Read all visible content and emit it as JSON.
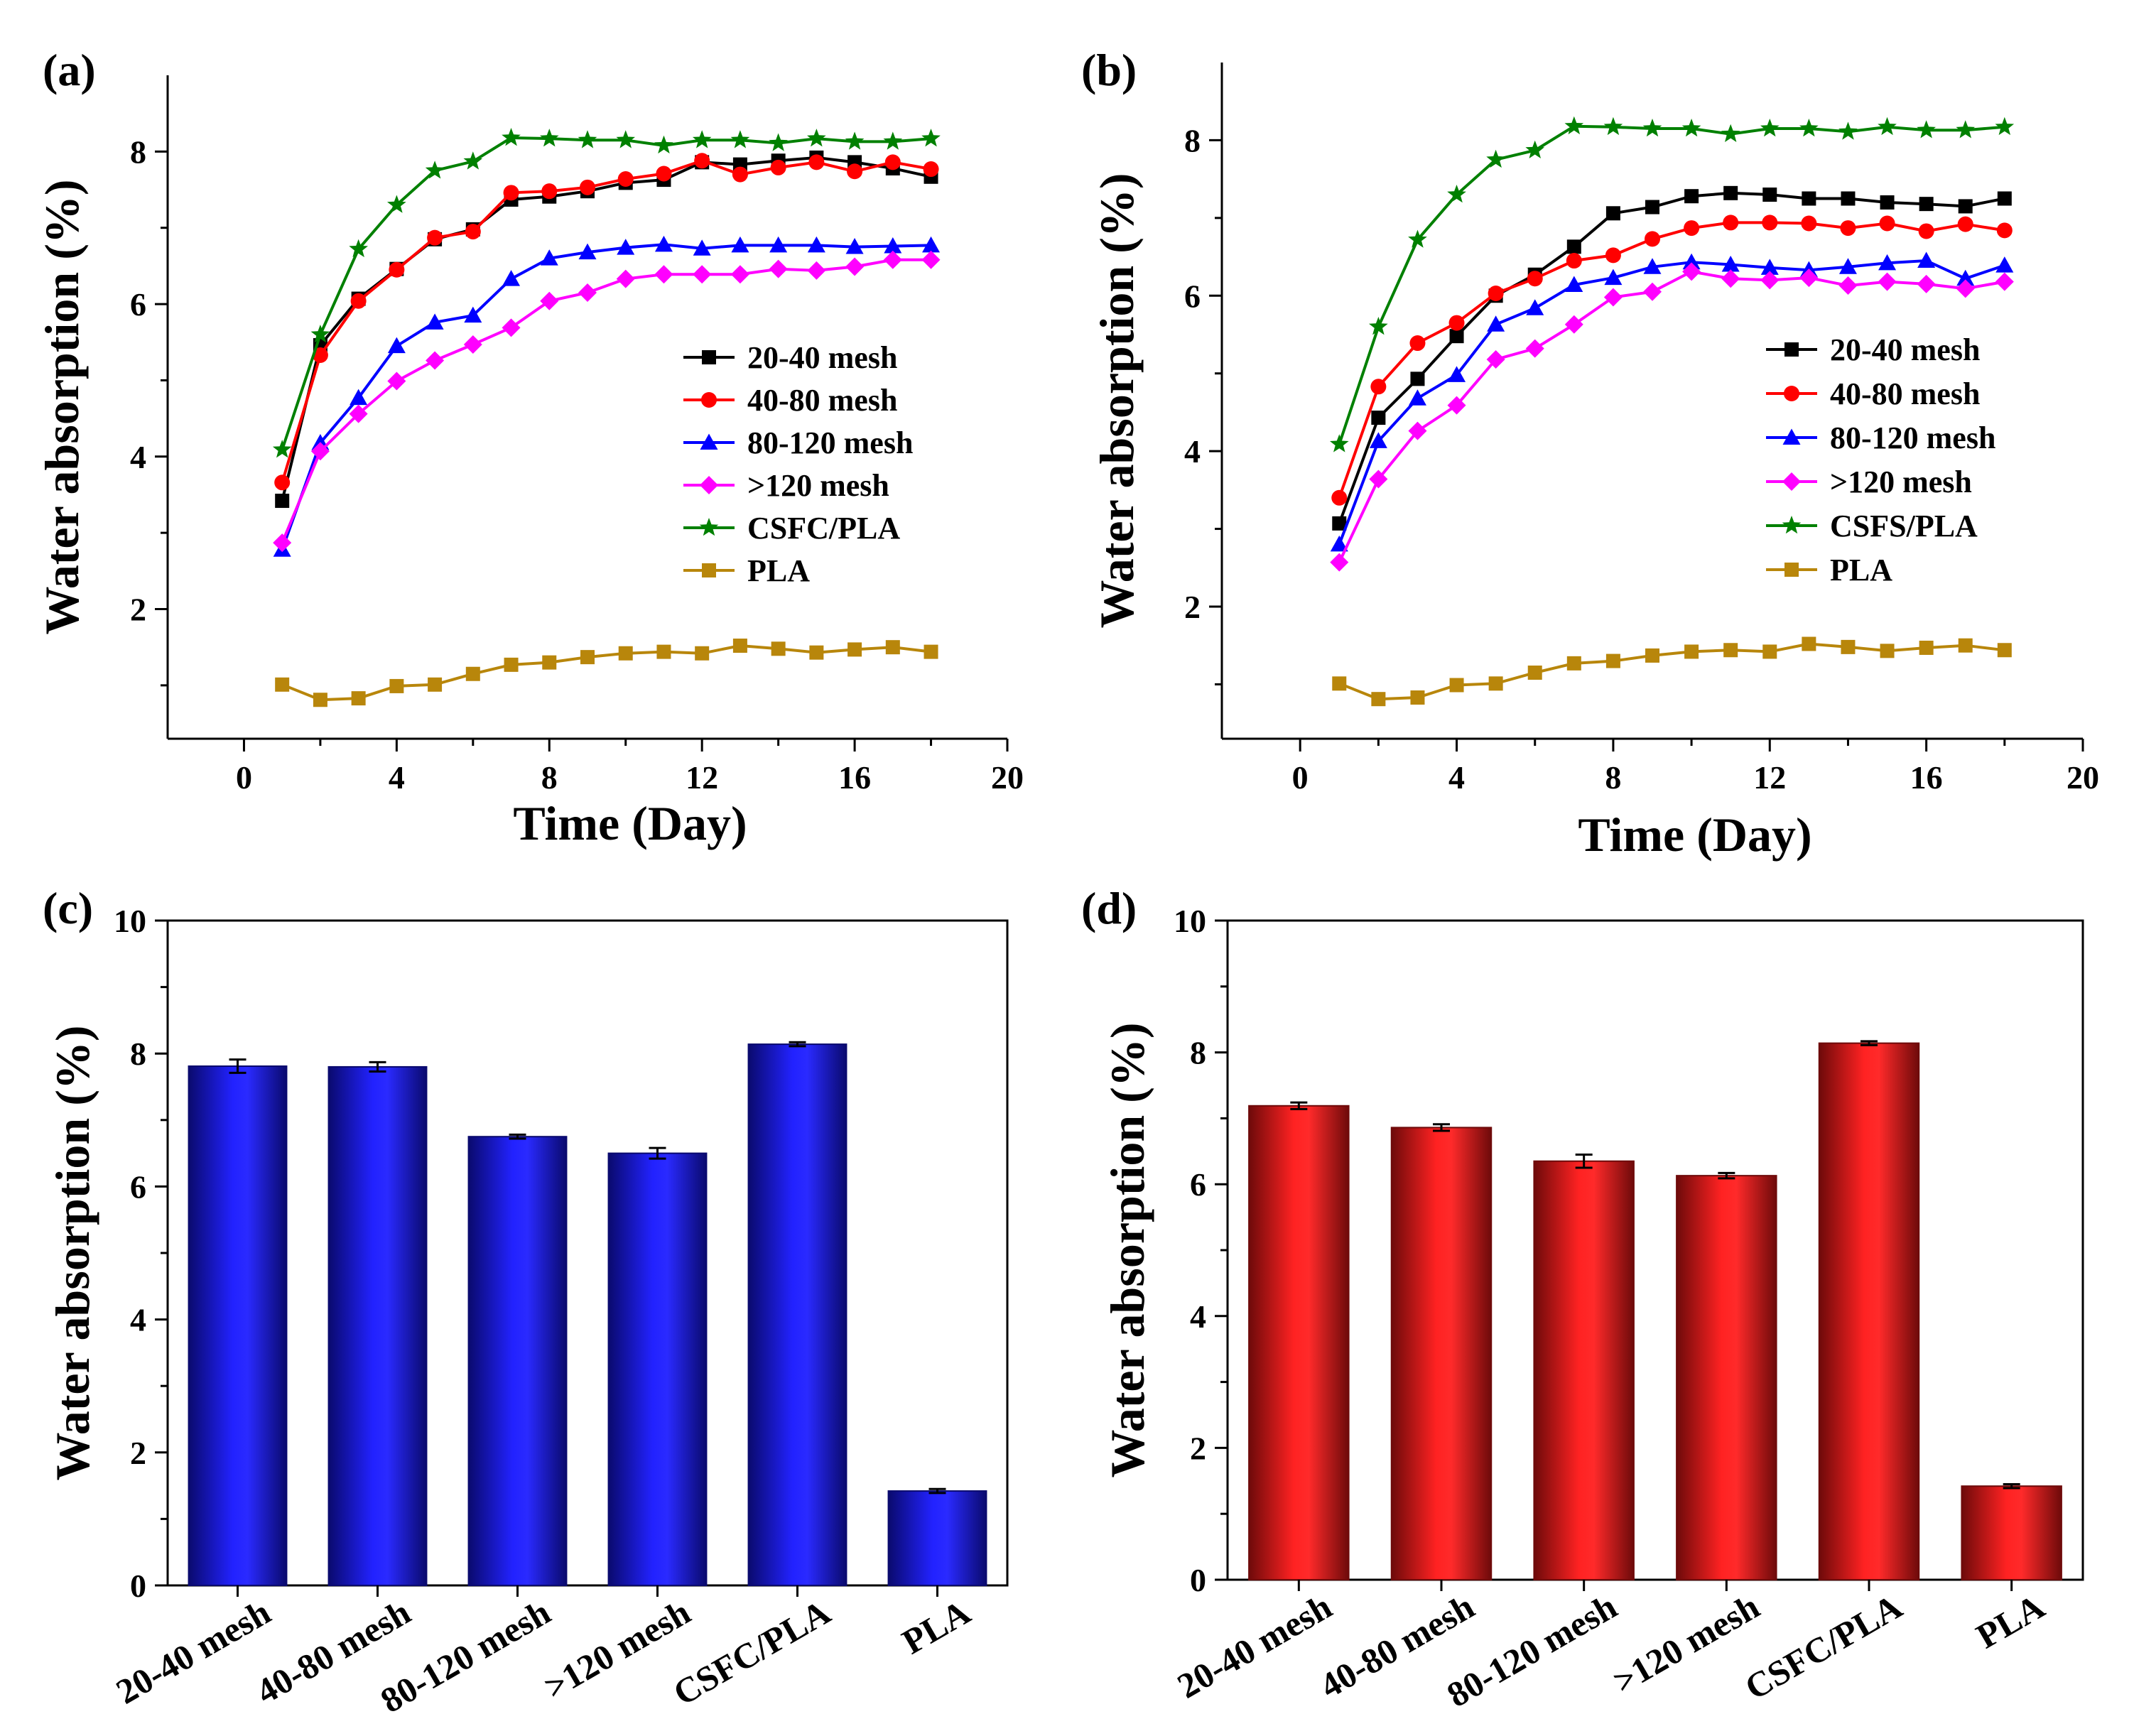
{
  "colors": {
    "black": "#000000",
    "red": "#ff0000",
    "blue": "#0000ff",
    "magenta": "#ff00ff",
    "green": "#008000",
    "gold": "#b8860b",
    "bar_blue": "#1a1aff",
    "bar_blue_edge": "#0a0a6e",
    "bar_red": "#ff2020",
    "bar_red_edge": "#6e0a0a"
  },
  "chart_data": [
    {
      "id": "a",
      "type": "line",
      "panel_label": "(a)",
      "xlabel": "Time (Day)",
      "ylabel": "Water absorption (%)",
      "xlim": [
        -2,
        20
      ],
      "ylim": [
        0.3,
        9.0
      ],
      "xticks": [
        0,
        4,
        8,
        12,
        16,
        20
      ],
      "xticklabels": [
        "0",
        "4",
        "8",
        "12",
        "16",
        "20"
      ],
      "yticks": [
        2,
        4,
        6,
        8
      ],
      "yticklabels": [
        "2",
        "4",
        "6",
        "8"
      ],
      "x": [
        1,
        2,
        3,
        4,
        5,
        6,
        7,
        8,
        9,
        10,
        11,
        12,
        13,
        14,
        15,
        16,
        17,
        18
      ],
      "series": [
        {
          "name": "20-40  mesh",
          "color": "black",
          "marker": "square",
          "values": [
            3.42,
            5.46,
            6.07,
            6.46,
            6.85,
            6.98,
            7.37,
            7.41,
            7.48,
            7.59,
            7.63,
            7.86,
            7.83,
            7.88,
            7.92,
            7.86,
            7.78,
            7.67
          ]
        },
        {
          "name": "40-80 mesh",
          "color": "red",
          "marker": "circle",
          "values": [
            3.66,
            5.33,
            6.04,
            6.45,
            6.87,
            6.95,
            7.46,
            7.48,
            7.53,
            7.64,
            7.71,
            7.88,
            7.7,
            7.79,
            7.86,
            7.74,
            7.86,
            7.77
          ]
        },
        {
          "name": " 80-120 mesh",
          "color": "blue",
          "marker": "triangle",
          "values": [
            2.78,
            4.18,
            4.77,
            5.45,
            5.76,
            5.85,
            6.33,
            6.6,
            6.68,
            6.74,
            6.78,
            6.73,
            6.77,
            6.77,
            6.77,
            6.75,
            6.76,
            6.77
          ]
        },
        {
          "name": ">120 mesh",
          "color": "magenta",
          "marker": "diamond",
          "values": [
            2.87,
            4.07,
            4.56,
            4.99,
            5.26,
            5.47,
            5.69,
            6.04,
            6.15,
            6.33,
            6.39,
            6.39,
            6.39,
            6.46,
            6.44,
            6.49,
            6.58,
            6.58
          ]
        },
        {
          "name": "CSFC/PLA",
          "color": "green",
          "marker": "star",
          "values": [
            4.09,
            5.6,
            6.72,
            7.3,
            7.75,
            7.87,
            8.18,
            8.17,
            8.15,
            8.15,
            8.08,
            8.15,
            8.15,
            8.11,
            8.17,
            8.13,
            8.13,
            8.17
          ]
        },
        {
          "name": "PLA",
          "color": "gold",
          "marker": "square",
          "values": [
            1.01,
            0.81,
            0.83,
            0.99,
            1.01,
            1.15,
            1.27,
            1.3,
            1.37,
            1.42,
            1.44,
            1.42,
            1.52,
            1.48,
            1.43,
            1.47,
            1.5,
            1.44
          ]
        }
      ],
      "legend_position": "right-middle"
    },
    {
      "id": "b",
      "type": "line",
      "panel_label": "(b)",
      "xlabel": "Time (Day)",
      "ylabel": "Water absorption (%)",
      "xlim": [
        -2,
        20
      ],
      "ylim": [
        0.3,
        9.0
      ],
      "xticks": [
        0,
        4,
        8,
        12,
        16,
        20
      ],
      "xticklabels": [
        "0",
        "4",
        "8",
        "12",
        "16",
        "20"
      ],
      "yticks": [
        2,
        4,
        6,
        8
      ],
      "yticklabels": [
        "2",
        "4",
        "6",
        "8"
      ],
      "x": [
        1,
        2,
        3,
        4,
        5,
        6,
        7,
        8,
        9,
        10,
        11,
        12,
        13,
        14,
        15,
        16,
        17,
        18
      ],
      "series": [
        {
          "name": "20-40 mesh",
          "color": "black",
          "marker": "square",
          "values": [
            3.07,
            4.43,
            4.93,
            5.48,
            6.0,
            6.27,
            6.63,
            7.06,
            7.14,
            7.28,
            7.32,
            7.3,
            7.25,
            7.25,
            7.2,
            7.18,
            7.15,
            7.25
          ]
        },
        {
          "name": "40-80 mesh",
          "color": "red",
          "marker": "circle",
          "values": [
            3.4,
            4.83,
            5.39,
            5.65,
            6.03,
            6.22,
            6.45,
            6.52,
            6.73,
            6.87,
            6.94,
            6.94,
            6.93,
            6.87,
            6.93,
            6.83,
            6.92,
            6.84
          ]
        },
        {
          "name": " 80-120 mesh",
          "color": "blue",
          "marker": "triangle",
          "values": [
            2.8,
            4.13,
            4.68,
            4.98,
            5.63,
            5.84,
            6.14,
            6.23,
            6.37,
            6.43,
            6.4,
            6.36,
            6.33,
            6.37,
            6.42,
            6.45,
            6.22,
            6.39
          ]
        },
        {
          "name": ">120 mesh",
          "color": "magenta",
          "marker": "diamond",
          "values": [
            2.57,
            3.64,
            4.26,
            4.59,
            5.18,
            5.32,
            5.63,
            5.98,
            6.05,
            6.31,
            6.22,
            6.2,
            6.23,
            6.13,
            6.18,
            6.15,
            6.09,
            6.18
          ]
        },
        {
          "name": "CSFS/PLA",
          "color": "green",
          "marker": "star",
          "values": [
            4.09,
            5.6,
            6.72,
            7.3,
            7.75,
            7.87,
            8.18,
            8.17,
            8.15,
            8.15,
            8.08,
            8.15,
            8.15,
            8.11,
            8.17,
            8.13,
            8.13,
            8.17
          ]
        },
        {
          "name": "PLA",
          "color": "gold",
          "marker": "square",
          "values": [
            1.01,
            0.81,
            0.83,
            0.99,
            1.01,
            1.15,
            1.27,
            1.3,
            1.37,
            1.42,
            1.44,
            1.42,
            1.52,
            1.48,
            1.43,
            1.47,
            1.5,
            1.44
          ]
        }
      ],
      "legend_position": "right-middle"
    },
    {
      "id": "c",
      "type": "bar",
      "panel_label": "(c)",
      "xlabel": "",
      "ylabel": "Water absorption (%)",
      "ylim": [
        0,
        10
      ],
      "yticks": [
        0,
        2,
        4,
        6,
        8,
        10
      ],
      "yticklabels": [
        "0",
        "2",
        "4",
        "6",
        "8",
        "10"
      ],
      "categories": [
        "20-40 mesh",
        "40-80 mesh",
        "80-120 mesh",
        ">120 mesh",
        "CSFC/PLA",
        "PLA"
      ],
      "values": [
        7.81,
        7.8,
        6.75,
        6.5,
        8.14,
        1.42
      ],
      "errors": [
        0.1,
        0.07,
        0.03,
        0.08,
        0.03,
        0.03
      ],
      "bar_color": "bar_blue",
      "bar_edge_color": "bar_blue_edge"
    },
    {
      "id": "d",
      "type": "bar",
      "panel_label": "(d)",
      "xlabel": "",
      "ylabel": "Water absorption (%)",
      "ylim": [
        0,
        10
      ],
      "yticks": [
        0,
        2,
        4,
        6,
        8,
        10
      ],
      "yticklabels": [
        "0",
        "2",
        "4",
        "6",
        "8",
        "10"
      ],
      "categories": [
        "20-40 mesh",
        "40-80 mesh",
        "80-120 mesh",
        ">120 mesh",
        "CSFC/PLA",
        "PLA"
      ],
      "values": [
        7.19,
        6.86,
        6.35,
        6.13,
        8.14,
        1.42
      ],
      "errors": [
        0.05,
        0.05,
        0.1,
        0.04,
        0.03,
        0.03
      ],
      "bar_color": "bar_red",
      "bar_edge_color": "bar_red_edge"
    }
  ]
}
